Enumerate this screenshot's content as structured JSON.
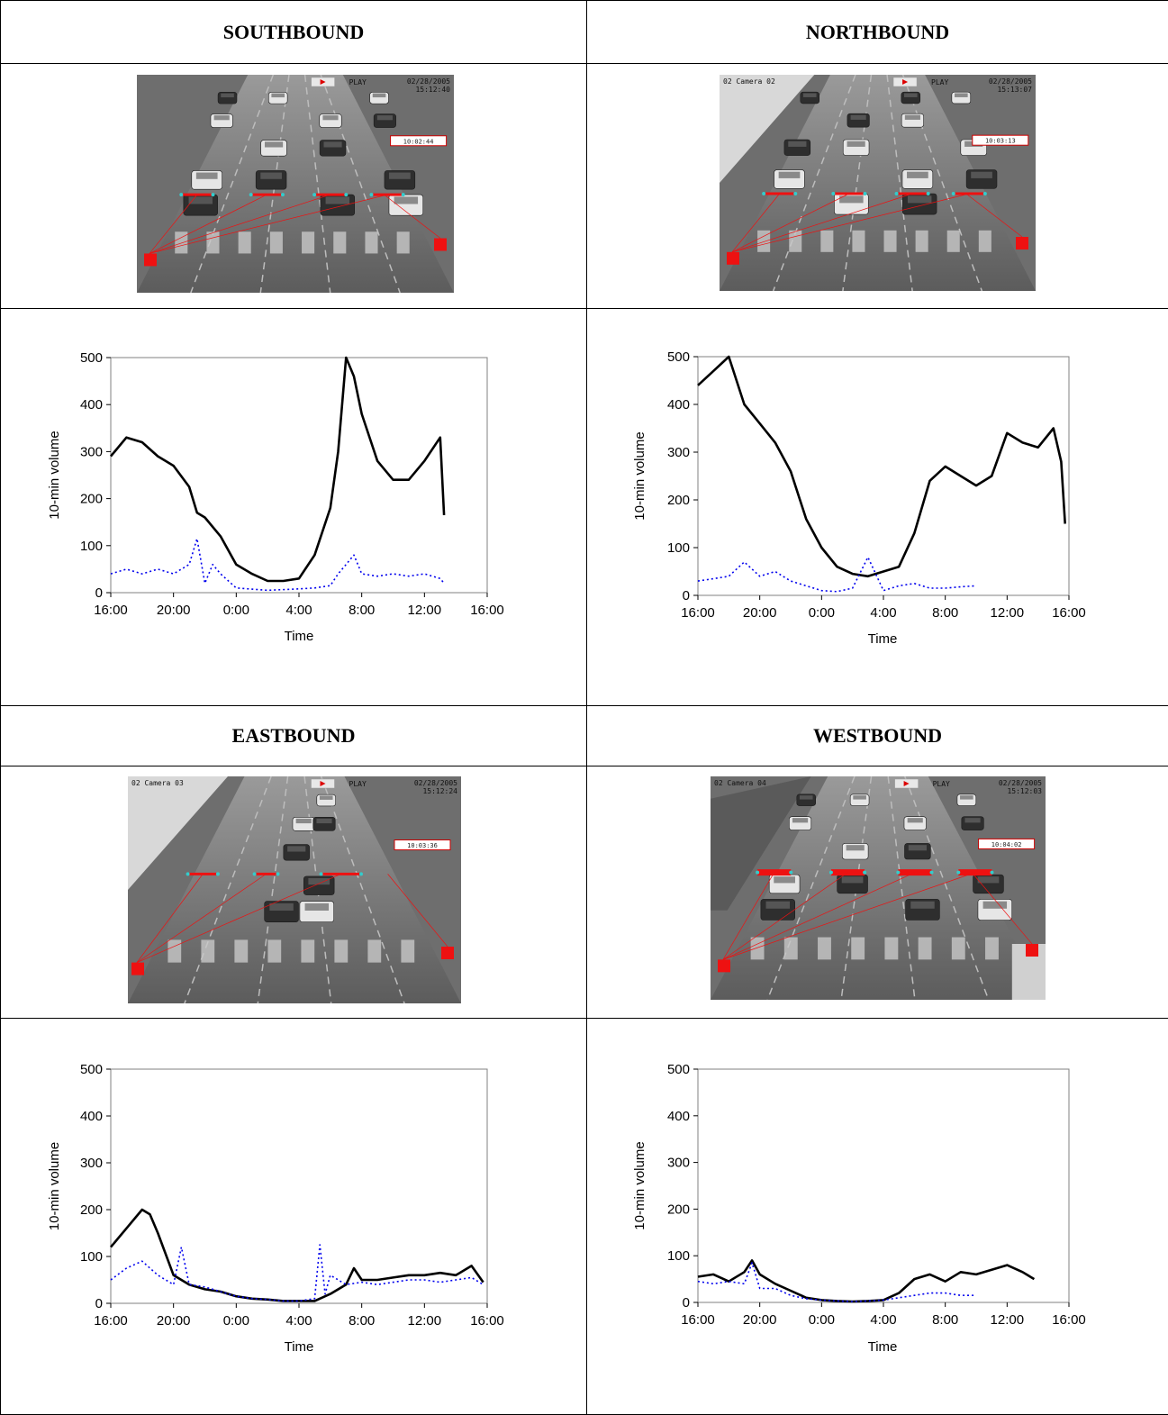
{
  "panels": [
    {
      "heading": "SOUTHBOUND",
      "camera": {
        "label": "",
        "date": "02/28/2005",
        "time": "15:12:40",
        "mode": "PLAY",
        "timestamp": "10:02:44"
      }
    },
    {
      "heading": "NORTHBOUND",
      "camera": {
        "label": "02 Camera 02",
        "date": "02/28/2005",
        "time": "15:13:07",
        "mode": "PLAY",
        "timestamp": "10:03:13"
      }
    },
    {
      "heading": "EASTBOUND",
      "camera": {
        "label": "02 Camera 03",
        "date": "02/28/2005",
        "time": "15:12:24",
        "mode": "PLAY",
        "timestamp": "10:03:36"
      }
    },
    {
      "heading": "WESTBOUND",
      "camera": {
        "label": "02 Camera 04",
        "date": "02/28/2005",
        "time": "15:12:03",
        "mode": "PLAY",
        "timestamp": "10:04:02"
      }
    }
  ],
  "colors": {
    "series_solid": "#000000",
    "series_dotted": "#0000ee",
    "detector": "#ee1111",
    "detector_node": "#33cccc"
  },
  "chart_data": [
    {
      "type": "line",
      "title": "",
      "xlabel": "Time",
      "ylabel": "10-min volume",
      "xlim": [
        "16:00",
        "16:00"
      ],
      "ylim": [
        0,
        500
      ],
      "xticks": [
        "16:00",
        "20:00",
        "0:00",
        "4:00",
        "8:00",
        "12:00",
        "16:00"
      ],
      "yticks": [
        0,
        100,
        200,
        300,
        400,
        500
      ],
      "series": [
        {
          "style": "solid",
          "x": [
            "16:00",
            "17:00",
            "18:00",
            "19:00",
            "20:00",
            "21:00",
            "21:30",
            "22:00",
            "23:00",
            "0:00",
            "1:00",
            "2:00",
            "3:00",
            "4:00",
            "5:00",
            "6:00",
            "6:30",
            "7:00",
            "7:30",
            "8:00",
            "9:00",
            "10:00",
            "11:00",
            "12:00",
            "13:00",
            "13:15"
          ],
          "values": [
            290,
            330,
            320,
            290,
            270,
            225,
            170,
            160,
            120,
            60,
            40,
            25,
            25,
            30,
            80,
            180,
            300,
            500,
            460,
            380,
            280,
            240,
            240,
            280,
            330,
            165
          ]
        },
        {
          "style": "dotted",
          "x": [
            "16:00",
            "17:00",
            "18:00",
            "19:00",
            "20:00",
            "21:00",
            "21:30",
            "22:00",
            "22:30",
            "23:00",
            "0:00",
            "2:00",
            "4:00",
            "5:00",
            "6:00",
            "6:30",
            "7:00",
            "7:30",
            "8:00",
            "9:00",
            "10:00",
            "11:00",
            "12:00",
            "13:00",
            "13:15"
          ],
          "values": [
            40,
            50,
            40,
            50,
            40,
            60,
            115,
            20,
            60,
            40,
            10,
            5,
            8,
            10,
            15,
            40,
            60,
            80,
            40,
            35,
            40,
            35,
            40,
            30,
            20
          ]
        }
      ]
    },
    {
      "type": "line",
      "title": "",
      "xlabel": "Time",
      "ylabel": "10-min volume",
      "xlim": [
        "16:00",
        "16:00"
      ],
      "ylim": [
        0,
        500
      ],
      "xticks": [
        "16:00",
        "20:00",
        "0:00",
        "4:00",
        "8:00",
        "12:00",
        "16:00"
      ],
      "yticks": [
        0,
        100,
        200,
        300,
        400,
        500
      ],
      "series": [
        {
          "style": "solid",
          "x": [
            "16:00",
            "17:00",
            "18:00",
            "19:00",
            "20:00",
            "21:00",
            "22:00",
            "23:00",
            "0:00",
            "1:00",
            "2:00",
            "3:00",
            "4:00",
            "5:00",
            "6:00",
            "7:00",
            "8:00",
            "9:00",
            "10:00",
            "11:00",
            "12:00",
            "13:00",
            "14:00",
            "15:00",
            "15:30",
            "15:45"
          ],
          "values": [
            440,
            470,
            500,
            400,
            360,
            320,
            260,
            160,
            100,
            60,
            45,
            40,
            50,
            60,
            130,
            240,
            270,
            250,
            230,
            250,
            340,
            320,
            310,
            350,
            280,
            150
          ]
        },
        {
          "style": "dotted",
          "x": [
            "16:00",
            "17:00",
            "18:00",
            "19:00",
            "20:00",
            "21:00",
            "22:00",
            "23:00",
            "0:00",
            "1:00",
            "2:00",
            "3:00",
            "4:00",
            "5:00",
            "6:00",
            "7:00",
            "8:00",
            "9:00",
            "10:00"
          ],
          "values": [
            30,
            35,
            40,
            70,
            40,
            50,
            30,
            20,
            10,
            8,
            15,
            80,
            10,
            20,
            25,
            15,
            15,
            18,
            20
          ]
        }
      ]
    },
    {
      "type": "line",
      "title": "",
      "xlabel": "Time",
      "ylabel": "10-min volume",
      "xlim": [
        "16:00",
        "16:00"
      ],
      "ylim": [
        0,
        500
      ],
      "xticks": [
        "16:00",
        "20:00",
        "0:00",
        "4:00",
        "8:00",
        "12:00",
        "16:00"
      ],
      "yticks": [
        0,
        100,
        200,
        300,
        400,
        500
      ],
      "series": [
        {
          "style": "solid",
          "x": [
            "16:00",
            "17:00",
            "18:00",
            "18:30",
            "19:00",
            "20:00",
            "21:00",
            "22:00",
            "23:00",
            "0:00",
            "1:00",
            "2:00",
            "3:00",
            "4:00",
            "5:00",
            "6:00",
            "7:00",
            "7:30",
            "8:00",
            "9:00",
            "10:00",
            "11:00",
            "12:00",
            "13:00",
            "14:00",
            "15:00",
            "15:45"
          ],
          "values": [
            120,
            160,
            200,
            190,
            150,
            60,
            40,
            30,
            25,
            15,
            10,
            8,
            5,
            5,
            5,
            20,
            40,
            75,
            50,
            50,
            55,
            60,
            60,
            65,
            60,
            80,
            45
          ]
        },
        {
          "style": "dotted",
          "x": [
            "16:00",
            "17:00",
            "18:00",
            "19:00",
            "20:00",
            "20:30",
            "21:00",
            "22:00",
            "23:00",
            "0:00",
            "1:00",
            "2:00",
            "3:00",
            "4:00",
            "5:00",
            "5:20",
            "5:40",
            "6:00",
            "7:00",
            "8:00",
            "9:00",
            "10:00",
            "11:00",
            "12:00",
            "13:00",
            "14:00",
            "15:00",
            "15:45"
          ],
          "values": [
            50,
            75,
            90,
            60,
            40,
            120,
            40,
            35,
            25,
            15,
            10,
            8,
            5,
            5,
            10,
            125,
            20,
            60,
            40,
            45,
            40,
            45,
            50,
            50,
            45,
            50,
            55,
            40
          ]
        }
      ]
    },
    {
      "type": "line",
      "title": "",
      "xlabel": "Time",
      "ylabel": "10-min volume",
      "xlim": [
        "16:00",
        "16:00"
      ],
      "ylim": [
        0,
        500
      ],
      "xticks": [
        "16:00",
        "20:00",
        "0:00",
        "4:00",
        "8:00",
        "12:00",
        "16:00"
      ],
      "yticks": [
        0,
        100,
        200,
        300,
        400,
        500
      ],
      "series": [
        {
          "style": "solid",
          "x": [
            "16:00",
            "17:00",
            "18:00",
            "19:00",
            "19:30",
            "20:00",
            "21:00",
            "22:00",
            "23:00",
            "0:00",
            "1:00",
            "2:00",
            "3:00",
            "4:00",
            "5:00",
            "6:00",
            "7:00",
            "8:00",
            "9:00",
            "10:00",
            "11:00",
            "12:00",
            "13:00",
            "13:45"
          ],
          "values": [
            55,
            60,
            45,
            65,
            90,
            60,
            40,
            25,
            10,
            5,
            3,
            2,
            3,
            5,
            20,
            50,
            60,
            45,
            65,
            60,
            70,
            80,
            65,
            50
          ]
        },
        {
          "style": "dotted",
          "x": [
            "16:00",
            "17:00",
            "18:00",
            "19:00",
            "19:30",
            "20:00",
            "21:00",
            "22:00",
            "23:00",
            "0:00",
            "1:00",
            "2:00",
            "3:00",
            "4:00",
            "5:00",
            "6:00",
            "7:00",
            "8:00",
            "9:00",
            "10:00"
          ],
          "values": [
            45,
            40,
            45,
            40,
            85,
            30,
            30,
            15,
            8,
            5,
            3,
            2,
            3,
            5,
            10,
            15,
            20,
            20,
            15,
            15
          ]
        }
      ]
    }
  ]
}
